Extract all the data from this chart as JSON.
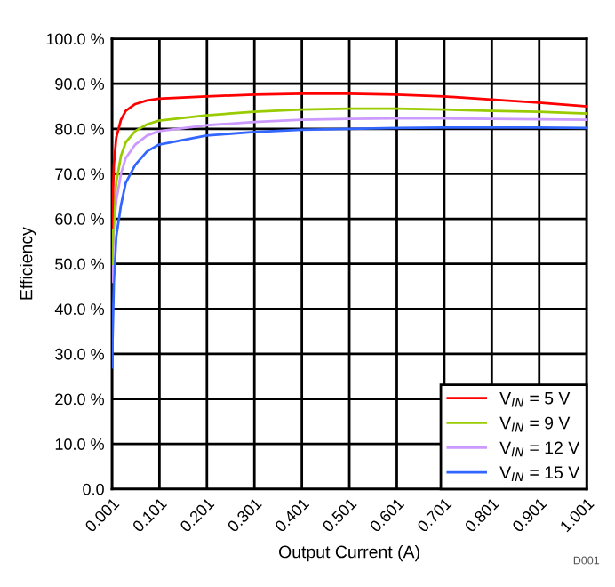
{
  "chart_data": {
    "type": "line",
    "xlabel": "Output Current (A)",
    "ylabel": "Efficiency",
    "x": [
      0.001,
      0.005,
      0.01,
      0.02,
      0.03,
      0.05,
      0.075,
      0.1,
      0.2,
      0.3,
      0.4,
      0.5,
      0.6,
      0.7,
      0.8,
      0.9,
      1.0
    ],
    "series": [
      {
        "name": "V$_{IN}$ = 5 V",
        "color": "#ff0000",
        "values": [
          58,
          72,
          78,
          82,
          84,
          85.5,
          86.3,
          86.7,
          87.2,
          87.6,
          87.8,
          87.8,
          87.6,
          87.2,
          86.5,
          85.8,
          85.0
        ]
      },
      {
        "name": "V$_{IN}$ = 9 V",
        "color": "#99cc00",
        "values": [
          50,
          62,
          68,
          74,
          77,
          79.5,
          81,
          81.8,
          83,
          83.8,
          84.3,
          84.5,
          84.5,
          84.3,
          84.0,
          83.8,
          83.4
        ]
      },
      {
        "name": "V$_{IN}$ = 12 V",
        "color": "#cc99ff",
        "values": [
          46,
          58,
          64,
          70,
          73.5,
          76.5,
          78.5,
          79.5,
          80.8,
          81.5,
          82,
          82.2,
          82.3,
          82.3,
          82.2,
          82.1,
          82.0
        ]
      },
      {
        "name": "V$_{IN}$ = 15 V",
        "color": "#3366ff",
        "values": [
          27,
          46,
          56,
          63,
          68,
          72,
          75,
          76.5,
          78.5,
          79.3,
          79.8,
          80,
          80.2,
          80.3,
          80.3,
          80.3,
          80.2
        ]
      }
    ],
    "xlim": [
      0.001,
      1.001
    ],
    "xticks": [
      {
        "value": 0.001,
        "label": "0.001"
      },
      {
        "value": 0.101,
        "label": "0.101"
      },
      {
        "value": 0.201,
        "label": "0.201"
      },
      {
        "value": 0.301,
        "label": "0.301"
      },
      {
        "value": 0.401,
        "label": "0.401"
      },
      {
        "value": 0.501,
        "label": "0.501"
      },
      {
        "value": 0.601,
        "label": "0.601"
      },
      {
        "value": 0.701,
        "label": "0.701"
      },
      {
        "value": 0.801,
        "label": "0.801"
      },
      {
        "value": 0.901,
        "label": "0.901"
      },
      {
        "value": 1.001,
        "label": "1.001"
      }
    ],
    "ylim": [
      0,
      100
    ],
    "yticks": [
      {
        "value": 0,
        "label": "0.0"
      },
      {
        "value": 10,
        "label": "10.0 %"
      },
      {
        "value": 20,
        "label": "20.0 %"
      },
      {
        "value": 30,
        "label": "30.0 %"
      },
      {
        "value": 40,
        "label": "40.0 %"
      },
      {
        "value": 50,
        "label": "50.0 %"
      },
      {
        "value": 60,
        "label": "60.0 %"
      },
      {
        "value": 70,
        "label": "70.0 %"
      },
      {
        "value": 80,
        "label": "80.0 %"
      },
      {
        "value": 90,
        "label": "90.0 %"
      },
      {
        "value": 100,
        "label": "100.0 %"
      }
    ],
    "grid": true,
    "legend": "bottom right",
    "marker": "none",
    "line_style": "solid",
    "annotations": [
      "D001"
    ]
  }
}
